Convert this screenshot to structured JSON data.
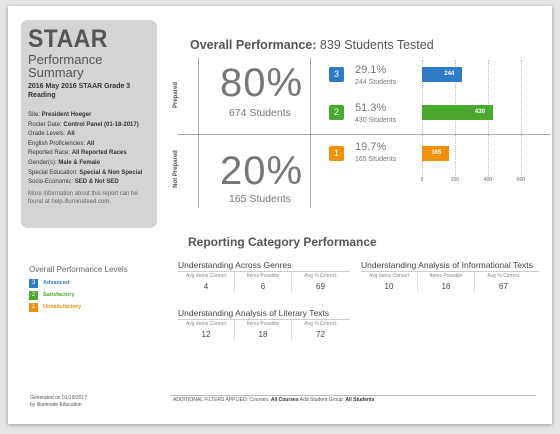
{
  "summary": {
    "title": "STAAR",
    "subtitle": "Performance Summary",
    "report_line": "2016 May 2016 STAAR Grade 3 Reading",
    "site_label": "Site:",
    "site_value": "President Hoeger",
    "roster_label": "Roster Date:",
    "roster_value": "Control Panel (01-18-2017)",
    "grade_label": "Grade Levels:",
    "grade_value": "All",
    "english_label": "English Proficiencies:",
    "english_value": "All",
    "race_label": "Reported Race:",
    "race_value": "All Reported Races",
    "gender_label": "Gender(s):",
    "gender_value": "Male & Female",
    "sped_label": "Special Education:",
    "sped_value": "Special & Non Special",
    "ses_label": "Socio-Economic:",
    "ses_value": "SED & Not SED",
    "note": "More information about this report can be found at help.illuminateed.com."
  },
  "legend": {
    "title": "Overall Performance Levels",
    "items": [
      {
        "num": "3",
        "label": "Advanced",
        "color": "#2f7bc6"
      },
      {
        "num": "2",
        "label": "Satisfactory",
        "color": "#4aa82e"
      },
      {
        "num": "1",
        "label": "Unsatisfactory",
        "color": "#f0900f"
      }
    ]
  },
  "overall": {
    "title_bold": "Overall Performance:",
    "title_rest": " 839 Students Tested",
    "prepared_label": "Prepared",
    "not_prepared_label": "Not Prepared",
    "prepared_pct": "80%",
    "prepared_students": "674 Students",
    "not_prepared_pct": "20%",
    "not_prepared_students": "165 Students",
    "levels": [
      {
        "num": "3",
        "pct": "29.1%",
        "students": "244 Students",
        "count": 244,
        "bar_label": "244",
        "color": "#2f7bc6"
      },
      {
        "num": "2",
        "pct": "51.3%",
        "students": "430 Students",
        "count": 430,
        "bar_label": "430",
        "color": "#4aa82e"
      },
      {
        "num": "1",
        "pct": "19.7%",
        "students": "165 Students",
        "count": 165,
        "bar_label": "165",
        "color": "#f0900f"
      }
    ],
    "axis_ticks": [
      "0",
      "200",
      "400",
      "600"
    ],
    "axis_max": 600
  },
  "reporting": {
    "title": "Reporting Category Performance",
    "col_labels": [
      "Avg Items Correct",
      "Items Possible",
      "Avg % Correct"
    ],
    "categories": [
      {
        "name": "Understanding Across Genres",
        "values": [
          "4",
          "6",
          "69"
        ]
      },
      {
        "name": "Understanding Analysis of Informational Texts",
        "values": [
          "10",
          "16",
          "67"
        ]
      },
      {
        "name": "Understanding Analysis of Literary Texts",
        "values": [
          "12",
          "18",
          "72"
        ]
      }
    ]
  },
  "footer": {
    "generated": "Generated on 01/19/2017",
    "by": "by Illuminate Education",
    "filters_label": "ADDITIONAL FILTERS APPLIED:",
    "courses_label": " Courses: ",
    "courses_value": "All Courses",
    "group_label": "  Add Student Group: ",
    "group_value": "All Students"
  }
}
